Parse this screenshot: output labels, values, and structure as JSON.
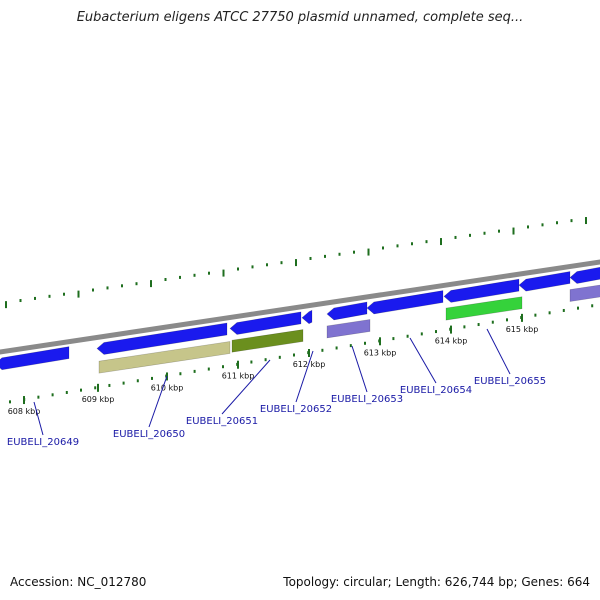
{
  "title": "Eubacterium eligens ATCC 27750 plasmid unnamed, complete seq...",
  "footer": {
    "accession_label": "Accession: NC_012780",
    "summary": "Topology: circular; Length: 626,744 bp; Genes: 664"
  },
  "colors": {
    "backbone": "#8a8a8a",
    "forward_strand": "#1a1aee",
    "cog_khaki": "#c6c58a",
    "cog_olive": "#6b8f1e",
    "cog_lavender": "#7f73d0",
    "cog_green": "#35d23b",
    "tick": "#1e6e1e",
    "label": "#1a1aa6"
  },
  "ticks": [
    {
      "label": "608 kbp"
    },
    {
      "label": "609 kbp"
    },
    {
      "label": "610 kbp"
    },
    {
      "label": "611 kbp"
    },
    {
      "label": "612 kbp"
    },
    {
      "label": "613 kbp"
    },
    {
      "label": "614 kbp"
    },
    {
      "label": "615 kbp"
    }
  ],
  "genes": [
    {
      "name": "EUBELI_20649"
    },
    {
      "name": "EUBELI_20650"
    },
    {
      "name": "EUBELI_20651"
    },
    {
      "name": "EUBELI_20652"
    },
    {
      "name": "EUBELI_20653"
    },
    {
      "name": "EUBELI_20654"
    },
    {
      "name": "EUBELI_20655"
    }
  ]
}
